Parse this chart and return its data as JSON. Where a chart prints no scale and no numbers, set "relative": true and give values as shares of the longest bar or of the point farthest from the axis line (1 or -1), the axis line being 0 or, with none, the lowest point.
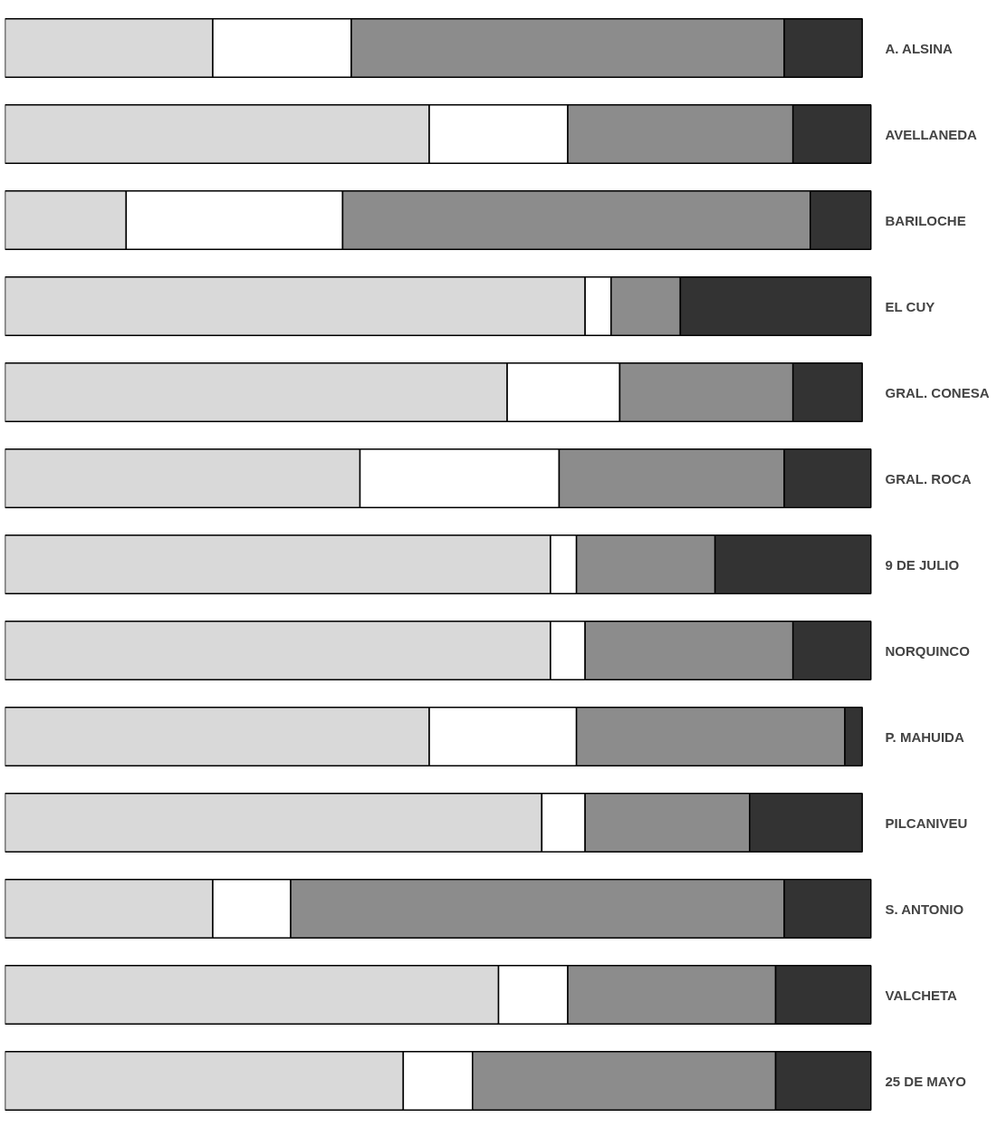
{
  "chart_data": {
    "type": "bar",
    "orientation": "horizontal",
    "stacked": true,
    "relative": true,
    "grid": false,
    "categories": [
      "A. ALSINA",
      "AVELLANEDA",
      "BARILOCHE",
      "EL CUY",
      "GRAL. CONESA",
      "GRAL. ROCA",
      "9 DE JULIO",
      "NORQUINCO",
      "P. MAHUIDA",
      "PILCANIVEU",
      "S. ANTONIO",
      "VALCHETA",
      "25 DE MAYO"
    ],
    "series": [
      {
        "color": "#d9d9d9",
        "values": [
          0.24,
          0.49,
          0.14,
          0.67,
          0.58,
          0.41,
          0.63,
          0.63,
          0.49,
          0.62,
          0.24,
          0.57,
          0.46
        ]
      },
      {
        "color": "#ffffff",
        "values": [
          0.16,
          0.16,
          0.25,
          0.03,
          0.13,
          0.23,
          0.03,
          0.04,
          0.17,
          0.05,
          0.09,
          0.08,
          0.08
        ]
      },
      {
        "color": "#8c8c8c",
        "values": [
          0.5,
          0.26,
          0.54,
          0.08,
          0.2,
          0.26,
          0.16,
          0.24,
          0.31,
          0.19,
          0.57,
          0.24,
          0.35
        ]
      },
      {
        "color": "#333333",
        "values": [
          0.09,
          0.09,
          0.07,
          0.22,
          0.08,
          0.1,
          0.18,
          0.09,
          0.02,
          0.13,
          0.1,
          0.11,
          0.11
        ]
      }
    ]
  }
}
